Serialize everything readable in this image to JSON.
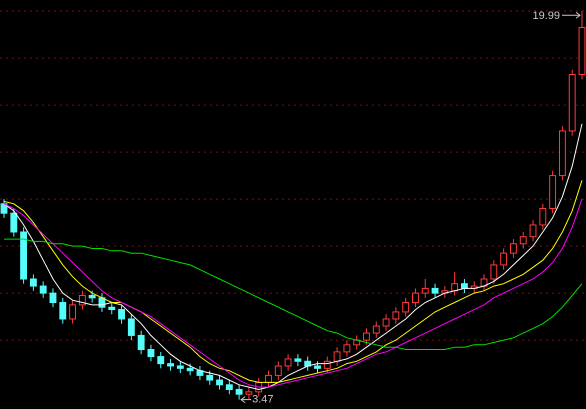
{
  "chart_data": {
    "type": "candlestick",
    "open": [
      11.8,
      11.4,
      10.6,
      8.6,
      8.3,
      8.0,
      7.6,
      6.9,
      7.5,
      7.9,
      7.8,
      7.4,
      7.3,
      6.9,
      6.2,
      5.6,
      5.3,
      5.0,
      4.9,
      4.8,
      4.7,
      4.5,
      4.3,
      4.1,
      3.9,
      3.7,
      3.8,
      4.2,
      4.5,
      4.9,
      5.2,
      5.1,
      4.9,
      4.8,
      5.1,
      5.5,
      5.8,
      6.0,
      6.3,
      6.6,
      6.9,
      7.2,
      7.6,
      8.0,
      8.2,
      8.0,
      8.1,
      8.4,
      8.2,
      8.3,
      8.6,
      9.2,
      9.7,
      10.1,
      10.4,
      10.9,
      11.6,
      13.0,
      14.9,
      17.3
    ],
    "high": [
      12.0,
      11.6,
      10.8,
      8.8,
      8.5,
      8.2,
      7.8,
      7.7,
      8.1,
      8.1,
      8.0,
      7.6,
      7.5,
      7.1,
      6.4,
      5.8,
      5.5,
      5.2,
      5.1,
      5.0,
      4.9,
      4.7,
      4.5,
      4.3,
      4.1,
      4.0,
      4.4,
      4.7,
      5.1,
      5.4,
      5.4,
      5.3,
      5.1,
      5.3,
      5.7,
      6.0,
      6.2,
      6.5,
      6.8,
      7.1,
      7.4,
      7.8,
      8.2,
      8.6,
      8.4,
      8.3,
      8.9,
      8.6,
      8.5,
      8.8,
      9.4,
      9.9,
      10.3,
      10.6,
      11.1,
      11.8,
      13.2,
      15.1,
      17.5,
      19.99
    ],
    "low": [
      11.2,
      10.4,
      8.4,
      8.1,
      7.8,
      7.4,
      6.7,
      6.7,
      7.3,
      7.6,
      7.2,
      7.1,
      6.7,
      6.0,
      5.4,
      5.1,
      4.8,
      4.7,
      4.6,
      4.5,
      4.3,
      4.1,
      3.9,
      3.7,
      3.47,
      3.5,
      3.6,
      4.0,
      4.3,
      4.7,
      4.9,
      4.7,
      4.6,
      4.6,
      4.9,
      5.3,
      5.6,
      5.8,
      6.1,
      6.4,
      6.7,
      7.0,
      7.4,
      7.8,
      7.8,
      7.8,
      7.9,
      8.0,
      8.0,
      8.1,
      8.4,
      9.0,
      9.5,
      9.9,
      10.2,
      10.7,
      11.4,
      12.8,
      14.7,
      17.1
    ],
    "close": [
      11.4,
      10.6,
      8.6,
      8.3,
      8.0,
      7.6,
      6.9,
      7.5,
      7.9,
      7.8,
      7.4,
      7.3,
      6.9,
      6.2,
      5.6,
      5.3,
      5.0,
      4.9,
      4.8,
      4.7,
      4.5,
      4.3,
      4.1,
      3.9,
      3.7,
      3.8,
      4.2,
      4.5,
      4.9,
      5.2,
      5.1,
      4.9,
      4.8,
      5.1,
      5.5,
      5.8,
      6.0,
      6.3,
      6.6,
      6.9,
      7.2,
      7.6,
      8.0,
      8.2,
      8.0,
      8.1,
      8.4,
      8.2,
      8.3,
      8.6,
      9.2,
      9.7,
      10.1,
      10.4,
      10.9,
      11.6,
      13.0,
      14.9,
      17.3,
      19.3
    ],
    "up_color": "#ff3b3b",
    "down_color": "#54fcfc",
    "series": [
      {
        "color": "#ffffff",
        "values": [
          11.8,
          11.5,
          10.9,
          10.2,
          9.4,
          8.6,
          8.0,
          7.7,
          7.6,
          7.5,
          7.5,
          7.6,
          7.5,
          7.1,
          6.7,
          6.2,
          5.8,
          5.4,
          5.1,
          4.9,
          4.7,
          4.6,
          4.5,
          4.3,
          4.1,
          4.0,
          3.9,
          4.0,
          4.2,
          4.5,
          4.7,
          4.9,
          5.0,
          5.0,
          5.1,
          5.2,
          5.4,
          5.7,
          6.0,
          6.3,
          6.6,
          6.9,
          7.3,
          7.6,
          7.8,
          8.0,
          8.1,
          8.2,
          8.2,
          8.3,
          8.5,
          8.8,
          9.2,
          9.6,
          10.0,
          10.6,
          11.2,
          12.1,
          13.4,
          15.2
        ]
      },
      {
        "color": "#ffff00",
        "values": [
          11.9,
          11.8,
          11.5,
          11.0,
          10.4,
          9.8,
          9.2,
          8.7,
          8.3,
          8.0,
          7.8,
          7.6,
          7.6,
          7.4,
          7.2,
          6.9,
          6.6,
          6.3,
          6.0,
          5.7,
          5.3,
          5.0,
          4.8,
          4.7,
          4.5,
          4.3,
          4.2,
          4.2,
          4.2,
          4.3,
          4.4,
          4.5,
          4.6,
          4.7,
          4.8,
          5.0,
          5.1,
          5.3,
          5.5,
          5.8,
          6.0,
          6.3,
          6.6,
          6.9,
          7.2,
          7.4,
          7.6,
          7.8,
          8.0,
          8.1,
          8.3,
          8.4,
          8.6,
          8.8,
          9.1,
          9.4,
          9.9,
          10.6,
          11.5,
          12.8
        ]
      },
      {
        "color": "#ff00ff",
        "values": [
          11.8,
          11.6,
          11.3,
          10.9,
          10.5,
          10.1,
          9.7,
          9.3,
          8.9,
          8.5,
          8.1,
          7.8,
          7.6,
          7.4,
          7.2,
          7.0,
          6.7,
          6.4,
          6.1,
          5.8,
          5.5,
          5.2,
          4.9,
          4.6,
          4.3,
          4.1,
          4.0,
          4.0,
          4.1,
          4.2,
          4.3,
          4.4,
          4.5,
          4.6,
          4.7,
          4.8,
          5.0,
          5.2,
          5.4,
          5.5,
          5.7,
          5.9,
          6.1,
          6.3,
          6.5,
          6.7,
          6.9,
          7.1,
          7.3,
          7.5,
          7.8,
          8.0,
          8.2,
          8.4,
          8.6,
          8.9,
          9.3,
          9.9,
          10.8,
          12.0
        ]
      },
      {
        "color": "#00e000",
        "values": [
          10.3,
          10.3,
          10.3,
          10.2,
          10.2,
          10.1,
          10.1,
          10.0,
          10.0,
          9.9,
          9.9,
          9.8,
          9.8,
          9.7,
          9.7,
          9.6,
          9.5,
          9.4,
          9.3,
          9.2,
          9.0,
          8.8,
          8.6,
          8.4,
          8.2,
          8.0,
          7.8,
          7.6,
          7.4,
          7.2,
          7.0,
          6.8,
          6.6,
          6.4,
          6.3,
          6.1,
          6.0,
          5.9,
          5.8,
          5.7,
          5.7,
          5.6,
          5.6,
          5.6,
          5.6,
          5.6,
          5.7,
          5.7,
          5.8,
          5.8,
          5.9,
          6.0,
          6.1,
          6.3,
          6.5,
          6.7,
          7.0,
          7.4,
          7.9,
          8.4
        ]
      }
    ],
    "ylim": [
      3.07,
      20.47
    ],
    "yticks": [
      6,
      8,
      10,
      12,
      14,
      16,
      18,
      20
    ],
    "grid": true,
    "annotations": [
      {
        "text": "19.99",
        "value": 19.99
      },
      {
        "text": "3.47",
        "value": 3.47
      }
    ]
  }
}
